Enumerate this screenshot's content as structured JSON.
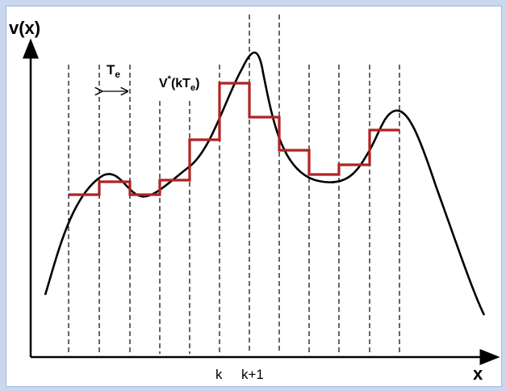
{
  "diagram": {
    "y_axis_label": "v(x)",
    "x_axis_label": "x",
    "period_symbol": "T",
    "period_subscript": "e",
    "sample_label_main": "V",
    "sample_label_sup": "*",
    "sample_label_args_open": "(kT",
    "sample_label_args_sub": "e",
    "sample_label_args_close": ")",
    "tick_k": "k",
    "tick_k1": "k+1",
    "colors": {
      "curve": "#000000",
      "steps": "#b22222",
      "grid": "#000000",
      "frame": "#c9d8ee"
    }
  }
}
